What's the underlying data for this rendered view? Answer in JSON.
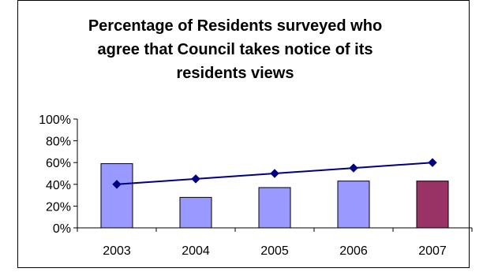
{
  "chart_data": {
    "type": "bar",
    "title": "Percentage of Residents surveyed who agree that Council takes notice of its residents views",
    "categories": [
      "2003",
      "2004",
      "2005",
      "2006",
      "2007"
    ],
    "series": [
      {
        "type": "bar",
        "values": [
          0.59,
          0.28,
          0.37,
          0.43,
          0.43
        ],
        "colors": [
          "#9999ff",
          "#9999ff",
          "#9999ff",
          "#9999ff",
          "#993366"
        ]
      },
      {
        "type": "line",
        "values": [
          0.4,
          0.45,
          0.5,
          0.55,
          0.6
        ],
        "color": "#000080"
      }
    ],
    "ylim": [
      0,
      1.0
    ],
    "yticks": [
      "0%",
      "20%",
      "40%",
      "60%",
      "80%",
      "100%"
    ],
    "grid": false,
    "legend": "none"
  }
}
